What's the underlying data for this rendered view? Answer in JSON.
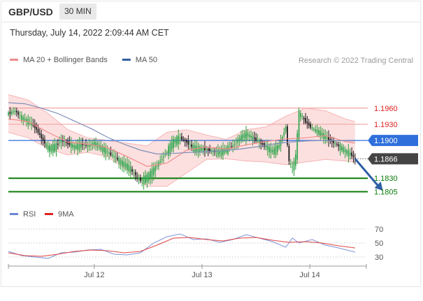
{
  "header": {
    "pair": "GBP/USD",
    "timeframe": "30 MIN"
  },
  "timestamp": "Thursday, July 14, 2022 2:09:44 AM CET",
  "chart_data": [
    {
      "type": "candlestick",
      "legend": [
        {
          "label": "MA 20 + Bollinger Bands",
          "color": "#f28b8b"
        },
        {
          "label": "MA 50",
          "color": "#335e9e"
        }
      ],
      "copyright": "Research © 2022 Trading Central",
      "ylim": [
        1.1785,
        1.2005
      ],
      "levels": [
        {
          "label": "1.1960",
          "value": 1.196,
          "kind": "resistance",
          "color": "#f4a3a3",
          "text_color": "#e02020"
        },
        {
          "label": "1.1930",
          "value": 1.193,
          "kind": "resistance",
          "color": "#f4a3a3",
          "text_color": "#e02020"
        },
        {
          "label": "1.1900",
          "value": 1.19,
          "kind": "pivot",
          "color": "#2f6fdc",
          "text_color": "#ffffff"
        },
        {
          "label": "1.1866",
          "value": 1.1866,
          "kind": "last",
          "color": "#444444",
          "text_color": "#ffffff"
        },
        {
          "label": "1.1830",
          "value": 1.183,
          "kind": "support",
          "color": "#0a7d0a",
          "text_color": "#0a7d0a"
        },
        {
          "label": "1.1805",
          "value": 1.1805,
          "kind": "support",
          "color": "#0a7d0a",
          "text_color": "#0a7d0a"
        }
      ],
      "price_path": [
        [
          0,
          1.195
        ],
        [
          4,
          1.1955
        ],
        [
          8,
          1.1942
        ],
        [
          12,
          1.1935
        ],
        [
          16,
          1.1925
        ],
        [
          20,
          1.1905
        ],
        [
          24,
          1.1885
        ],
        [
          28,
          1.1888
        ],
        [
          32,
          1.19
        ],
        [
          36,
          1.1895
        ],
        [
          40,
          1.1888
        ],
        [
          44,
          1.1893
        ],
        [
          48,
          1.189
        ],
        [
          52,
          1.1895
        ],
        [
          56,
          1.1887
        ],
        [
          60,
          1.1878
        ],
        [
          64,
          1.187
        ],
        [
          68,
          1.186
        ],
        [
          72,
          1.1852
        ],
        [
          76,
          1.184
        ],
        [
          80,
          1.1826
        ],
        [
          84,
          1.1832
        ],
        [
          88,
          1.1846
        ],
        [
          92,
          1.1862
        ],
        [
          96,
          1.188
        ],
        [
          100,
          1.1898
        ],
        [
          104,
          1.1905
        ],
        [
          108,
          1.1897
        ],
        [
          112,
          1.1886
        ],
        [
          116,
          1.1885
        ],
        [
          120,
          1.1883
        ],
        [
          124,
          1.188
        ],
        [
          128,
          1.1878
        ],
        [
          132,
          1.1884
        ],
        [
          136,
          1.189
        ],
        [
          140,
          1.1905
        ],
        [
          144,
          1.1912
        ],
        [
          148,
          1.1905
        ],
        [
          152,
          1.1897
        ],
        [
          156,
          1.1888
        ],
        [
          160,
          1.188
        ],
        [
          164,
          1.189
        ],
        [
          168,
          1.1925
        ],
        [
          170,
          1.186
        ],
        [
          172,
          1.1848
        ],
        [
          174,
          1.187
        ],
        [
          176,
          1.195
        ],
        [
          180,
          1.1935
        ],
        [
          184,
          1.1922
        ],
        [
          188,
          1.1915
        ],
        [
          192,
          1.1906
        ],
        [
          196,
          1.1898
        ],
        [
          200,
          1.189
        ],
        [
          204,
          1.188
        ],
        [
          208,
          1.1873
        ],
        [
          210,
          1.1866
        ]
      ],
      "ma20": [
        [
          0,
          1.194
        ],
        [
          12,
          1.1935
        ],
        [
          24,
          1.1915
        ],
        [
          36,
          1.1897
        ],
        [
          48,
          1.1893
        ],
        [
          60,
          1.1887
        ],
        [
          72,
          1.187
        ],
        [
          84,
          1.1852
        ],
        [
          96,
          1.1858
        ],
        [
          108,
          1.1882
        ],
        [
          120,
          1.1888
        ],
        [
          132,
          1.1884
        ],
        [
          144,
          1.1892
        ],
        [
          156,
          1.1898
        ],
        [
          168,
          1.1903
        ],
        [
          180,
          1.1905
        ],
        [
          192,
          1.1909
        ],
        [
          204,
          1.1898
        ],
        [
          210,
          1.1895
        ]
      ],
      "bollinger_upper": [
        [
          0,
          1.1985
        ],
        [
          12,
          1.1975
        ],
        [
          24,
          1.195
        ],
        [
          36,
          1.192
        ],
        [
          48,
          1.1905
        ],
        [
          60,
          1.19
        ],
        [
          72,
          1.1895
        ],
        [
          84,
          1.189
        ],
        [
          96,
          1.1915
        ],
        [
          108,
          1.192
        ],
        [
          120,
          1.191
        ],
        [
          132,
          1.1902
        ],
        [
          144,
          1.192
        ],
        [
          156,
          1.1925
        ],
        [
          168,
          1.1945
        ],
        [
          180,
          1.196
        ],
        [
          192,
          1.1955
        ],
        [
          204,
          1.194
        ],
        [
          210,
          1.1935
        ]
      ],
      "bollinger_lower": [
        [
          0,
          1.1915
        ],
        [
          12,
          1.1905
        ],
        [
          24,
          1.1885
        ],
        [
          36,
          1.1873
        ],
        [
          48,
          1.1878
        ],
        [
          60,
          1.187
        ],
        [
          72,
          1.1845
        ],
        [
          84,
          1.1815
        ],
        [
          96,
          1.1815
        ],
        [
          108,
          1.184
        ],
        [
          120,
          1.1865
        ],
        [
          132,
          1.1866
        ],
        [
          144,
          1.1862
        ],
        [
          156,
          1.186
        ],
        [
          168,
          1.1855
        ],
        [
          180,
          1.186
        ],
        [
          192,
          1.1865
        ],
        [
          204,
          1.1862
        ],
        [
          210,
          1.186
        ]
      ],
      "ma50": [
        [
          0,
          1.197
        ],
        [
          10,
          1.1968
        ],
        [
          20,
          1.196
        ],
        [
          30,
          1.195
        ],
        [
          40,
          1.1936
        ],
        [
          50,
          1.1922
        ],
        [
          60,
          1.1906
        ],
        [
          70,
          1.1893
        ],
        [
          80,
          1.1882
        ],
        [
          90,
          1.1875
        ],
        [
          100,
          1.1876
        ],
        [
          110,
          1.1878
        ],
        [
          120,
          1.1879
        ],
        [
          130,
          1.1881
        ],
        [
          140,
          1.1884
        ],
        [
          150,
          1.1888
        ],
        [
          160,
          1.1893
        ],
        [
          170,
          1.1897
        ],
        [
          180,
          1.1899
        ],
        [
          190,
          1.19
        ],
        [
          200,
          1.19
        ],
        [
          210,
          1.1899
        ]
      ],
      "forecast_arrow": {
        "from": [
          210,
          1.1866
        ],
        "to": [
          226,
          1.1807
        ]
      },
      "x_ticks": [
        {
          "label": "Jul 12",
          "x": 40
        },
        {
          "label": "Jul 13",
          "x": 104
        },
        {
          "label": "Jul 14",
          "x": 168
        }
      ]
    },
    {
      "type": "line",
      "legend": [
        {
          "label": "RSI",
          "color": "#6b86d6"
        },
        {
          "label": "9MA",
          "color": "#e02020"
        }
      ],
      "ylim": [
        20,
        80
      ],
      "y_ticks": [
        "70",
        "50",
        "30"
      ],
      "y_tick_values": [
        70,
        50,
        30
      ],
      "rsi": [
        [
          0,
          38
        ],
        [
          8,
          32
        ],
        [
          16,
          30
        ],
        [
          24,
          28
        ],
        [
          32,
          36
        ],
        [
          40,
          37
        ],
        [
          48,
          40
        ],
        [
          56,
          41
        ],
        [
          64,
          34
        ],
        [
          72,
          33
        ],
        [
          80,
          36
        ],
        [
          88,
          50
        ],
        [
          96,
          59
        ],
        [
          104,
          63
        ],
        [
          112,
          55
        ],
        [
          120,
          56
        ],
        [
          128,
          51
        ],
        [
          136,
          55
        ],
        [
          144,
          62
        ],
        [
          152,
          57
        ],
        [
          160,
          52
        ],
        [
          168,
          44
        ],
        [
          172,
          57
        ],
        [
          176,
          50
        ],
        [
          184,
          55
        ],
        [
          192,
          47
        ],
        [
          200,
          43
        ],
        [
          210,
          37
        ]
      ],
      "ma9": [
        [
          0,
          36
        ],
        [
          10,
          32
        ],
        [
          20,
          31
        ],
        [
          30,
          34
        ],
        [
          40,
          38
        ],
        [
          50,
          40
        ],
        [
          60,
          39
        ],
        [
          70,
          36
        ],
        [
          80,
          38
        ],
        [
          90,
          47
        ],
        [
          100,
          57
        ],
        [
          110,
          58
        ],
        [
          120,
          55
        ],
        [
          130,
          53
        ],
        [
          140,
          57
        ],
        [
          150,
          58
        ],
        [
          160,
          54
        ],
        [
          170,
          51
        ],
        [
          180,
          52
        ],
        [
          190,
          50
        ],
        [
          200,
          46
        ],
        [
          210,
          43
        ]
      ]
    }
  ]
}
